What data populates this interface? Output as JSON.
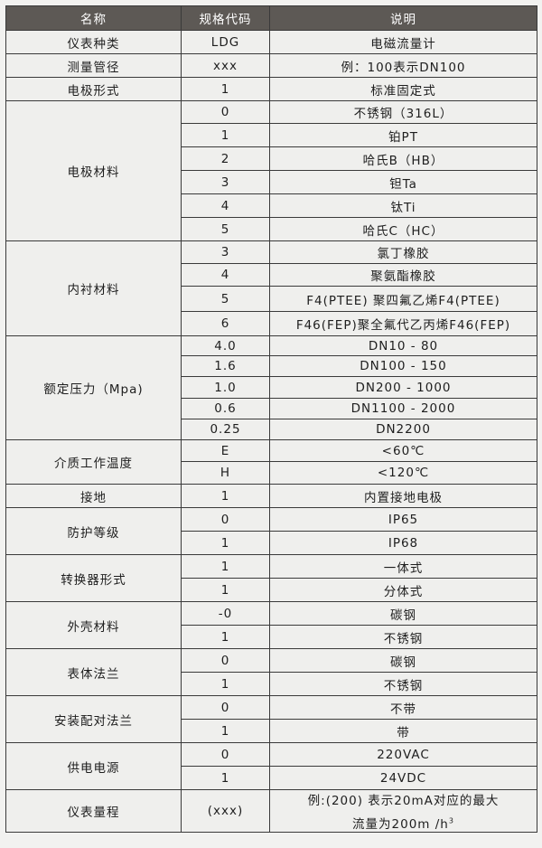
{
  "header": {
    "name": "名称",
    "code": "规格代码",
    "desc": "说明"
  },
  "groups": [
    {
      "name": "仪表种类",
      "items": [
        {
          "code": "LDG",
          "desc": "电磁流量计"
        }
      ]
    },
    {
      "name": "测量管径",
      "items": [
        {
          "code": "xxx",
          "desc": "例：100表示DN100"
        }
      ]
    },
    {
      "name": "电极形式",
      "items": [
        {
          "code": "1",
          "desc": "标准固定式"
        }
      ]
    },
    {
      "name": "电极材料",
      "items": [
        {
          "code": "0",
          "desc": "不锈钢（316L）"
        },
        {
          "code": "1",
          "desc": "铂PT"
        },
        {
          "code": "2",
          "desc": "哈氏B（HB）"
        },
        {
          "code": "3",
          "desc": "钽Ta"
        },
        {
          "code": "4",
          "desc": "钛Ti"
        },
        {
          "code": "5",
          "desc": "哈氏C（HC）"
        }
      ]
    },
    {
      "name": "内衬材料",
      "items": [
        {
          "code": "3",
          "desc": "氯丁橡胶"
        },
        {
          "code": "4",
          "desc": "聚氨酯橡胶"
        },
        {
          "code": "5",
          "desc": "F4(PTEE) 聚四氟乙烯F4(PTEE)"
        },
        {
          "code": "6",
          "desc": "F46(FEP)聚全氟代乙丙烯F46(FEP)"
        }
      ]
    },
    {
      "name": "额定压力（Mpa)",
      "items": [
        {
          "code": "4.0",
          "desc": "DN10 - 80"
        },
        {
          "code": "1.6",
          "desc": "DN100 - 150"
        },
        {
          "code": "1.0",
          "desc": "DN200 - 1000"
        },
        {
          "code": "0.6",
          "desc": "DN1100 - 2000"
        },
        {
          "code": "0.25",
          "desc": "DN2200"
        }
      ]
    },
    {
      "name": "介质工作温度",
      "items": [
        {
          "code": "E",
          "desc": "<60℃"
        },
        {
          "code": "H",
          "desc": "<120℃"
        }
      ]
    },
    {
      "name": "接地",
      "items": [
        {
          "code": "1",
          "desc": "内置接地电极"
        }
      ]
    },
    {
      "name": "防护等级",
      "items": [
        {
          "code": "0",
          "desc": "IP65"
        },
        {
          "code": "1",
          "desc": "IP68"
        }
      ]
    },
    {
      "name": "转换器形式",
      "items": [
        {
          "code": "1",
          "desc": "一体式"
        },
        {
          "code": "1",
          "desc": "分体式"
        }
      ]
    },
    {
      "name": "外壳材料",
      "items": [
        {
          "code": "-0",
          "desc": "碳钢"
        },
        {
          "code": "1",
          "desc": "不锈钢"
        }
      ]
    },
    {
      "name": "表体法兰",
      "items": [
        {
          "code": "0",
          "desc": "碳钢"
        },
        {
          "code": "1",
          "desc": "不锈钢"
        }
      ]
    },
    {
      "name": "安装配对法兰",
      "items": [
        {
          "code": "0",
          "desc": "不带"
        },
        {
          "code": "1",
          "desc": "带"
        }
      ]
    },
    {
      "name": "供电电源",
      "items": [
        {
          "code": "0",
          "desc": "220VAC"
        },
        {
          "code": "1",
          "desc": "24VDC"
        }
      ]
    },
    {
      "name": "仪表量程",
      "items": [
        {
          "code": "(xxx)",
          "desc": "例:(200) 表示20mA对应的最大",
          "desc2": "流量为200m /h",
          "desc2_sup": "3"
        }
      ]
    }
  ]
}
